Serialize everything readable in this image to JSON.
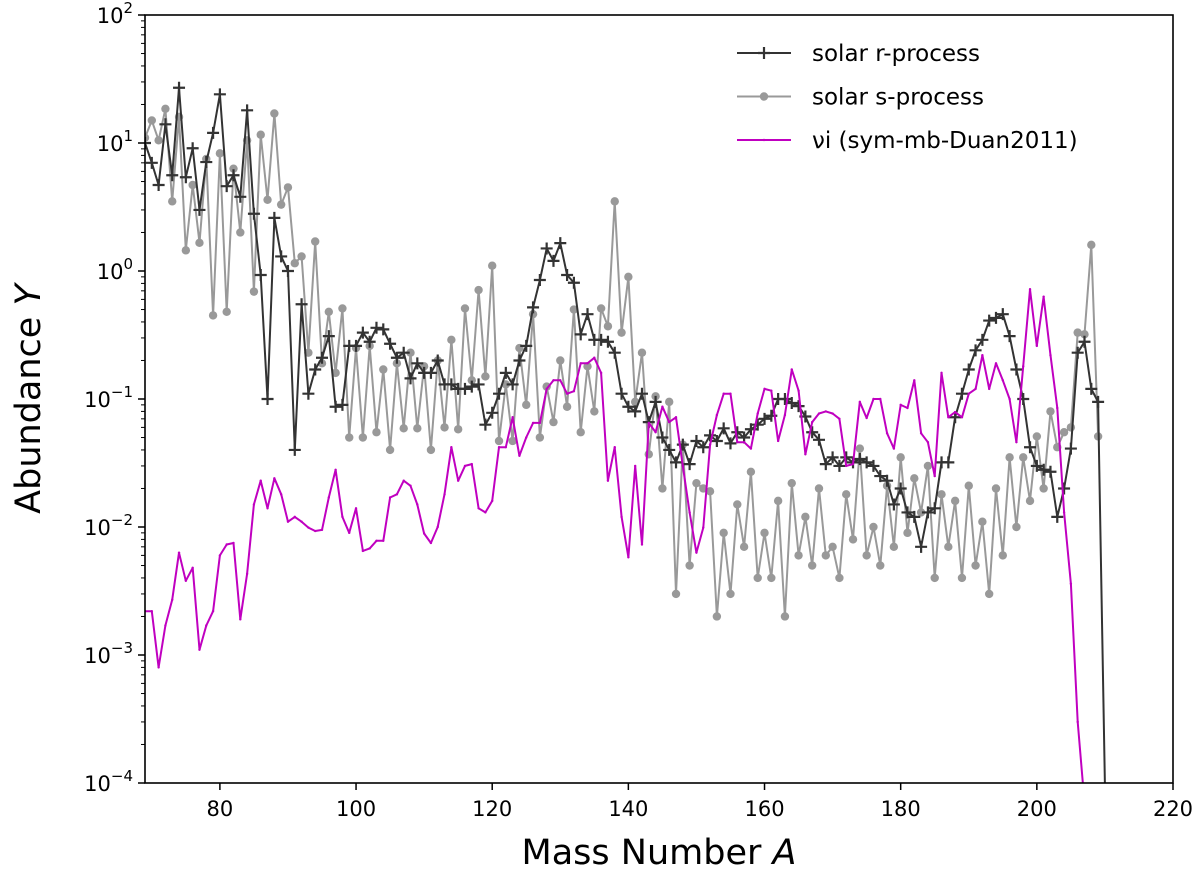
{
  "chart_data": {
    "type": "line",
    "title": "",
    "xlabel": "Mass Number",
    "xlabel_italic": "A",
    "ylabel": "Abundance",
    "ylabel_italic": "Y",
    "xlim": [
      69,
      220
    ],
    "ylim": [
      0.0001,
      100
    ],
    "yscale": "log",
    "grid": false,
    "legend_position": "top-right",
    "x_ticks": [
      "80",
      "100",
      "120",
      "140",
      "160",
      "180",
      "200",
      "220"
    ],
    "y_ticks": [
      {
        "base": "10",
        "exp": "2",
        "value": 100
      },
      {
        "base": "10",
        "exp": "1",
        "value": 10
      },
      {
        "base": "10",
        "exp": "0",
        "value": 1
      },
      {
        "base": "10",
        "exp": "−1",
        "value": 0.1
      },
      {
        "base": "10",
        "exp": "−2",
        "value": 0.01
      },
      {
        "base": "10",
        "exp": "−3",
        "value": 0.001
      },
      {
        "base": "10",
        "exp": "−4",
        "value": 0.0001
      }
    ],
    "series": [
      {
        "name": "solar r-process",
        "color": "#333333",
        "marker": "plus",
        "x": [
          69,
          70,
          71,
          72,
          73,
          74,
          75,
          76,
          77,
          78,
          79,
          80,
          81,
          82,
          83,
          84,
          85,
          86,
          87,
          88,
          89,
          90,
          91,
          92,
          93,
          94,
          95,
          96,
          97,
          98,
          99,
          100,
          101,
          102,
          103,
          104,
          105,
          106,
          107,
          108,
          109,
          110,
          111,
          112,
          113,
          114,
          115,
          116,
          117,
          118,
          119,
          120,
          121,
          122,
          123,
          124,
          125,
          126,
          127,
          128,
          129,
          130,
          131,
          132,
          133,
          134,
          135,
          136,
          137,
          138,
          139,
          140,
          141,
          142,
          143,
          144,
          145,
          146,
          147,
          148,
          149,
          150,
          151,
          152,
          153,
          154,
          155,
          156,
          157,
          158,
          159,
          160,
          161,
          162,
          163,
          164,
          165,
          166,
          167,
          168,
          169,
          170,
          171,
          172,
          173,
          174,
          175,
          176,
          177,
          178,
          179,
          180,
          181,
          182,
          183,
          184,
          185,
          186,
          187,
          188,
          189,
          190,
          191,
          192,
          193,
          194,
          195,
          196,
          197,
          198,
          199,
          200,
          201,
          202,
          203,
          204,
          205,
          206,
          207,
          208,
          209,
          210
        ],
        "values": [
          10,
          7,
          4.7,
          14,
          5.6,
          27,
          5.4,
          9.1,
          3.0,
          7.1,
          12,
          24,
          4.6,
          5.6,
          3.8,
          18,
          2.8,
          0.93,
          0.1,
          2.6,
          1.3,
          1.0,
          0.04,
          0.55,
          0.11,
          0.17,
          0.21,
          0.31,
          0.087,
          0.09,
          0.26,
          0.26,
          0.33,
          0.28,
          0.36,
          0.35,
          0.27,
          0.21,
          0.23,
          0.145,
          0.19,
          0.16,
          0.16,
          0.2,
          0.13,
          0.13,
          0.12,
          0.12,
          0.125,
          0.13,
          0.063,
          0.078,
          0.11,
          0.16,
          0.13,
          0.2,
          0.26,
          0.52,
          0.85,
          1.5,
          1.2,
          1.65,
          0.93,
          0.81,
          0.32,
          0.46,
          0.29,
          0.29,
          0.28,
          0.23,
          0.11,
          0.087,
          0.08,
          0.11,
          0.066,
          0.095,
          0.05,
          0.04,
          0.032,
          0.044,
          0.031,
          0.047,
          0.042,
          0.052,
          0.047,
          0.059,
          0.045,
          0.055,
          0.05,
          0.058,
          0.063,
          0.07,
          0.074,
          0.1,
          0.1,
          0.093,
          0.088,
          0.073,
          0.055,
          0.048,
          0.031,
          0.035,
          0.03,
          0.035,
          0.032,
          0.034,
          0.032,
          0.03,
          0.025,
          0.023,
          0.015,
          0.02,
          0.013,
          0.012,
          0.007,
          0.013,
          0.014,
          0.032,
          0.032,
          0.072,
          0.11,
          0.17,
          0.24,
          0.29,
          0.41,
          0.43,
          0.46,
          0.31,
          0.17,
          0.1,
          0.042,
          0.03,
          0.028,
          0.027,
          0.012,
          0.02,
          0.041,
          0.23,
          0.28,
          0.12,
          0.095,
          0
        ]
      },
      {
        "name": "solar s-process",
        "color": "#999999",
        "marker": "circle",
        "x": [
          69,
          70,
          71,
          72,
          73,
          74,
          75,
          76,
          77,
          78,
          79,
          80,
          81,
          82,
          83,
          84,
          85,
          86,
          87,
          88,
          89,
          90,
          91,
          92,
          93,
          94,
          95,
          96,
          97,
          98,
          99,
          100,
          101,
          102,
          103,
          104,
          105,
          106,
          107,
          108,
          109,
          110,
          111,
          112,
          113,
          114,
          115,
          116,
          117,
          118,
          119,
          120,
          121,
          122,
          123,
          124,
          125,
          126,
          127,
          128,
          129,
          130,
          131,
          132,
          133,
          134,
          135,
          136,
          137,
          138,
          139,
          140,
          141,
          142,
          143,
          144,
          145,
          146,
          147,
          148,
          149,
          150,
          151,
          152,
          153,
          154,
          155,
          156,
          157,
          158,
          159,
          160,
          161,
          162,
          163,
          164,
          165,
          166,
          167,
          168,
          169,
          170,
          171,
          172,
          173,
          174,
          175,
          176,
          177,
          178,
          179,
          180,
          181,
          182,
          183,
          184,
          185,
          186,
          187,
          188,
          189,
          190,
          191,
          192,
          193,
          194,
          195,
          196,
          197,
          198,
          199,
          200,
          201,
          202,
          203,
          204,
          205,
          206,
          207,
          208,
          209
        ],
        "values": [
          11,
          15,
          10.5,
          18.5,
          3.5,
          16,
          1.45,
          4.7,
          1.66,
          7.5,
          0.45,
          8.3,
          0.48,
          6.3,
          2.0,
          10.5,
          0.69,
          11.6,
          3.6,
          17,
          3.3,
          4.5,
          1.15,
          1.3,
          0.23,
          1.7,
          0.19,
          0.48,
          0.16,
          0.51,
          0.05,
          0.25,
          0.05,
          0.26,
          0.055,
          0.17,
          0.04,
          0.19,
          0.059,
          0.23,
          0.059,
          0.18,
          0.04,
          0.2,
          0.06,
          0.29,
          0.058,
          0.51,
          0.14,
          0.71,
          0.15,
          1.1,
          0.047,
          0.13,
          0.047,
          0.25,
          0.09,
          0.46,
          0.05,
          0.125,
          0.066,
          0.2,
          0.087,
          0.5,
          0.055,
          0.18,
          0.08,
          0.51,
          0.37,
          3.5,
          0.33,
          0.9,
          0.095,
          0.23,
          0.037,
          0.105,
          0.02,
          0.095,
          0.003,
          0.044,
          0.005,
          0.022,
          0.02,
          0.019,
          0.002,
          0.009,
          0.003,
          0.015,
          0.007,
          0.027,
          0.004,
          0.009,
          0.004,
          0.016,
          0.002,
          0.022,
          0.006,
          0.012,
          0.005,
          0.02,
          0.006,
          0.007,
          0.004,
          0.018,
          0.008,
          0.041,
          0.006,
          0.01,
          0.005,
          0.021,
          0.007,
          0.035,
          0.009,
          0.024,
          0.013,
          0.03,
          0.004,
          0.018,
          0.007,
          0.016,
          0.004,
          0.021,
          0.005,
          0.011,
          0.003,
          0.02,
          0.006,
          0.035,
          0.01,
          0.035,
          0.016,
          0.051,
          0.02,
          0.08,
          0.042,
          0.055,
          0.06,
          0.33,
          0.32,
          1.6,
          0.051
        ]
      },
      {
        "name": "νi (sym-mb-Duan2011)",
        "color": "#c000c0",
        "marker": "point",
        "x": [
          69,
          70,
          71,
          72,
          73,
          74,
          75,
          76,
          77,
          78,
          79,
          80,
          81,
          82,
          83,
          84,
          85,
          86,
          87,
          88,
          89,
          90,
          91,
          92,
          93,
          94,
          95,
          96,
          97,
          98,
          99,
          100,
          101,
          102,
          103,
          104,
          105,
          106,
          107,
          108,
          109,
          110,
          111,
          112,
          113,
          114,
          115,
          116,
          117,
          118,
          119,
          120,
          121,
          122,
          123,
          124,
          125,
          126,
          127,
          128,
          129,
          130,
          131,
          132,
          133,
          134,
          135,
          136,
          137,
          138,
          139,
          140,
          141,
          142,
          143,
          144,
          145,
          146,
          147,
          148,
          149,
          150,
          151,
          152,
          153,
          154,
          155,
          156,
          157,
          158,
          159,
          160,
          161,
          162,
          163,
          164,
          165,
          166,
          167,
          168,
          169,
          170,
          171,
          172,
          173,
          174,
          175,
          176,
          177,
          178,
          179,
          180,
          181,
          182,
          183,
          184,
          185,
          186,
          187,
          188,
          189,
          190,
          191,
          192,
          193,
          194,
          195,
          196,
          197,
          198,
          199,
          200,
          201,
          202,
          203,
          204,
          205,
          206,
          207
        ],
        "values": [
          0.0022,
          0.0022,
          0.0008,
          0.0017,
          0.0027,
          0.0063,
          0.0038,
          0.0048,
          0.0011,
          0.0017,
          0.0022,
          0.006,
          0.0073,
          0.0075,
          0.0019,
          0.0043,
          0.015,
          0.023,
          0.014,
          0.024,
          0.018,
          0.011,
          0.012,
          0.011,
          0.0099,
          0.0093,
          0.0095,
          0.017,
          0.028,
          0.012,
          0.009,
          0.014,
          0.0065,
          0.0068,
          0.0078,
          0.0078,
          0.017,
          0.018,
          0.023,
          0.021,
          0.015,
          0.0089,
          0.0075,
          0.01,
          0.018,
          0.042,
          0.023,
          0.03,
          0.031,
          0.014,
          0.013,
          0.016,
          0.042,
          0.042,
          0.072,
          0.036,
          0.05,
          0.065,
          0.065,
          0.12,
          0.14,
          0.14,
          0.11,
          0.115,
          0.19,
          0.19,
          0.21,
          0.16,
          0.023,
          0.042,
          0.012,
          0.0058,
          0.03,
          0.0073,
          0.065,
          0.055,
          0.087,
          0.066,
          0.072,
          0.03,
          0.013,
          0.0063,
          0.0099,
          0.044,
          0.075,
          0.11,
          0.11,
          0.046,
          0.046,
          0.041,
          0.077,
          0.12,
          0.116,
          0.047,
          0.075,
          0.17,
          0.116,
          0.037,
          0.066,
          0.077,
          0.08,
          0.077,
          0.07,
          0.03,
          0.031,
          0.095,
          0.071,
          0.1,
          0.1,
          0.054,
          0.041,
          0.09,
          0.085,
          0.14,
          0.054,
          0.046,
          0.025,
          0.16,
          0.072,
          0.079,
          0.072,
          0.11,
          0.12,
          0.22,
          0.12,
          0.19,
          0.14,
          0.1,
          0.046,
          0.18,
          0.72,
          0.26,
          0.63,
          0.22,
          0.085,
          0.013,
          0.0036,
          0.0003,
          7e-05
        ]
      }
    ]
  }
}
